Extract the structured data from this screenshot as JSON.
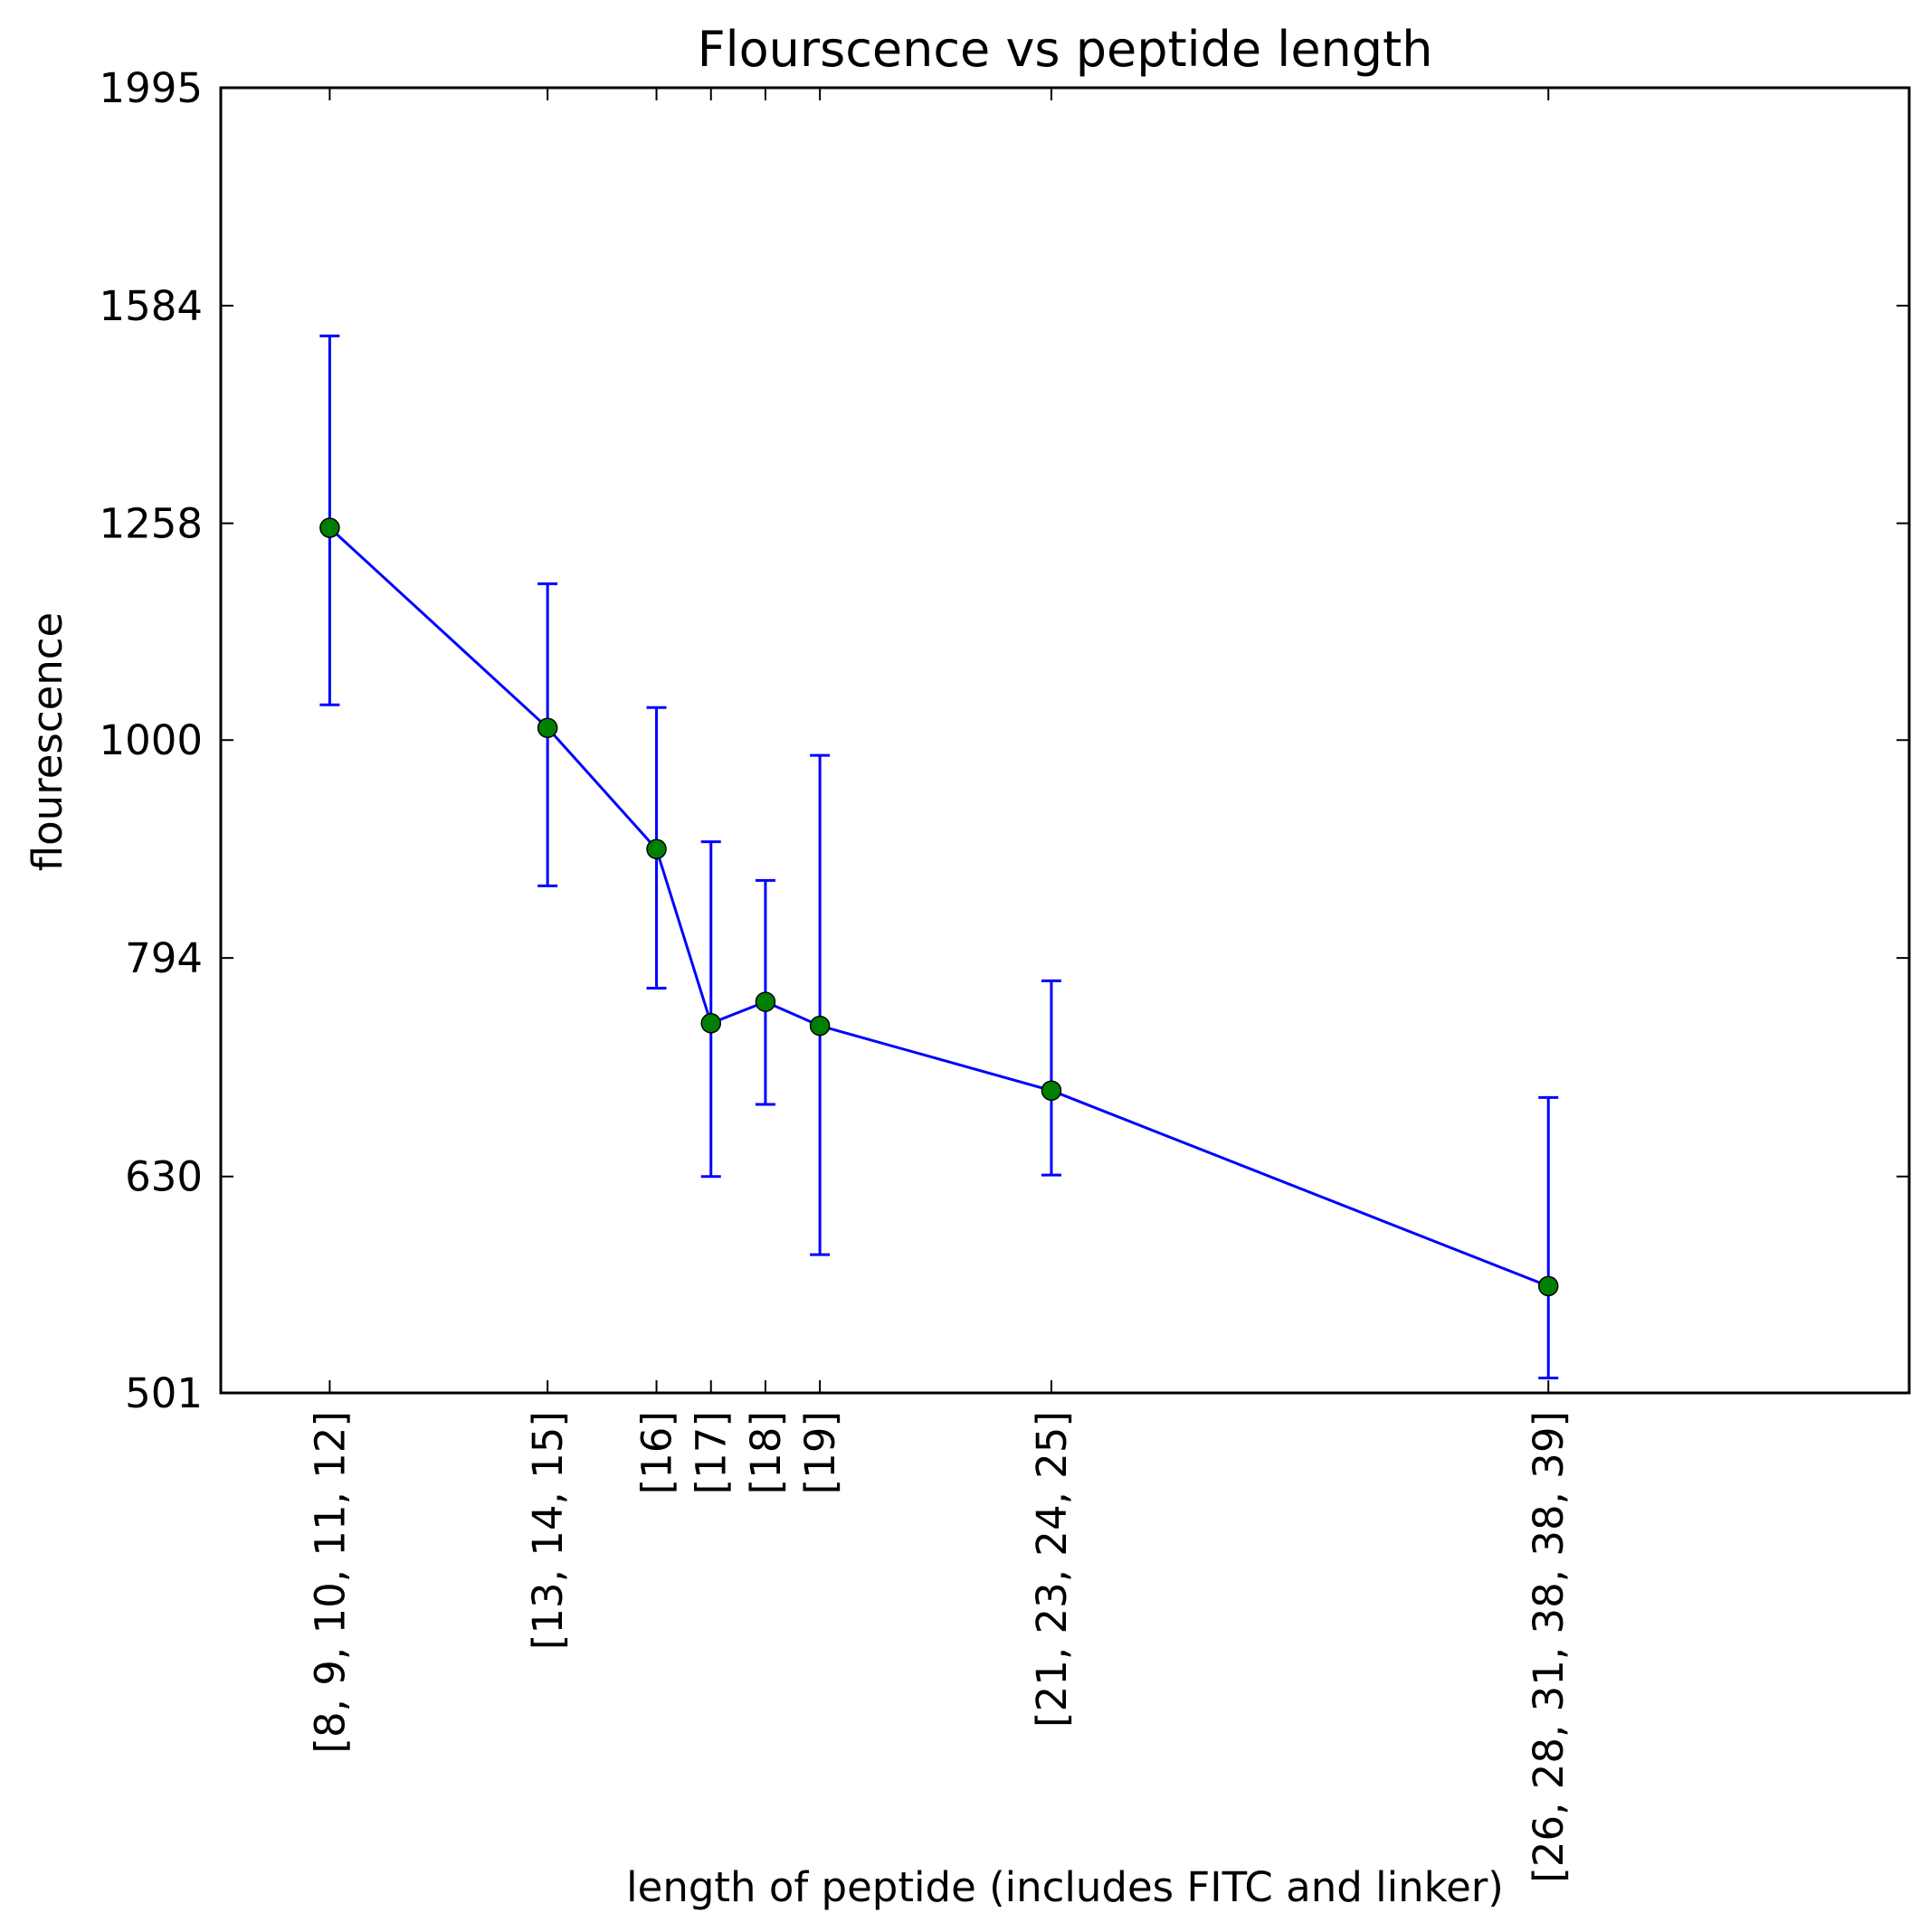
{
  "chart_data": {
    "type": "line",
    "title": "Flourscence vs peptide length",
    "xlabel": "length of peptide (includes FITC and linker)",
    "ylabel": "flourescence",
    "y_scale": "log",
    "ylim": [
      501,
      1995
    ],
    "y_ticks": [
      501,
      630,
      794,
      1000,
      1258,
      1584,
      1995
    ],
    "x_ticks": [
      9.5,
      13.5,
      15.5,
      16.5,
      17.5,
      18.5,
      22.75,
      31.875
    ],
    "xlim": [
      7.5,
      38.5
    ],
    "categories": [
      "[8, 9, 10, 11, 12]",
      "[13, 14, 15]",
      "[16]",
      "[17]",
      "[18]",
      "[19]",
      "[21, 23, 24, 25]",
      "[26, 28, 31, 38, 38, 39]"
    ],
    "x": [
      9.5,
      13.5,
      15.5,
      16.5,
      17.5,
      18.5,
      22.75,
      31.875
    ],
    "series": [
      {
        "values": [
          1252,
          1013,
          891,
          741,
          758,
          739,
          690,
          561
        ],
        "err_low": [
          1038,
          857,
          769,
          630,
          680,
          580,
          631,
          509
        ],
        "err_high": [
          1534,
          1180,
          1035,
          898,
          862,
          984,
          775,
          685
        ],
        "line_color": "#0000ff",
        "marker_color": "#008000"
      }
    ],
    "grid": false,
    "legend": "none"
  }
}
